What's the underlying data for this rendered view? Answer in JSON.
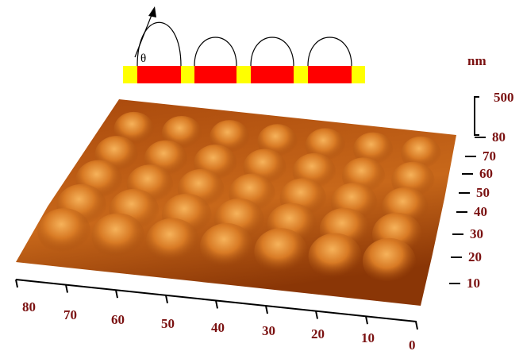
{
  "schematic": {
    "angle_label": "θ"
  },
  "scale": {
    "unit": "nm",
    "bar_label": "500"
  },
  "depth_axis": {
    "ticks": [
      "80",
      "70",
      "60",
      "50",
      "40",
      "30",
      "20",
      "10"
    ]
  },
  "x_axis": {
    "ticks": [
      "80",
      "70",
      "60",
      "50",
      "40",
      "30",
      "20",
      "10",
      "0"
    ]
  }
}
